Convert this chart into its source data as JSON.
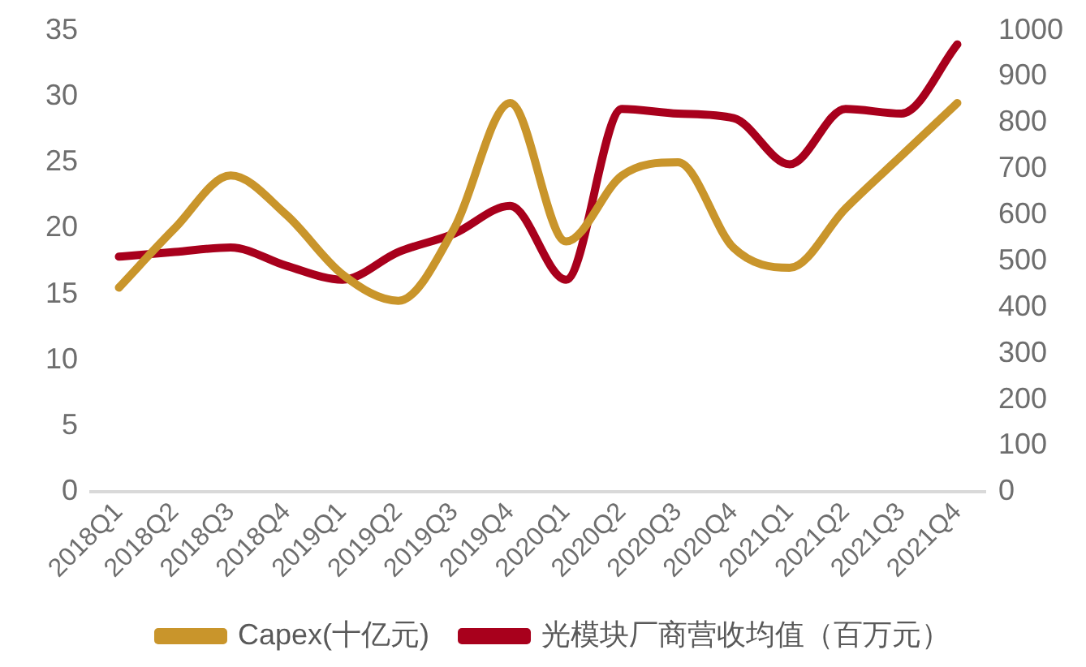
{
  "chart_data": {
    "type": "line",
    "categories": [
      "2018Q1",
      "2018Q2",
      "2018Q3",
      "2018Q4",
      "2019Q1",
      "2019Q2",
      "2019Q3",
      "2019Q4",
      "2020Q1",
      "2020Q2",
      "2020Q3",
      "2020Q4",
      "2021Q1",
      "2021Q2",
      "2021Q3",
      "2021Q4"
    ],
    "series": [
      {
        "name": "Capex(十亿元)",
        "color": "#c9952b",
        "values": [
          15.5,
          20,
          24,
          21,
          16.5,
          14.5,
          20,
          29.5,
          19,
          24,
          25,
          18.5,
          17,
          21.5,
          25.5,
          29.5
        ]
      },
      {
        "name": "光模块厂商营收均值（百万元）",
        "color": "#a8001c",
        "axis": "y2",
        "values": [
          510,
          520,
          530,
          490,
          460,
          520,
          560,
          620,
          460,
          830,
          820,
          810,
          710,
          830,
          820,
          970
        ]
      }
    ],
    "ylim": [
      0,
      35
    ],
    "yticks": [
      0,
      5,
      10,
      15,
      20,
      25,
      30,
      35
    ],
    "y2lim": [
      0,
      1000
    ],
    "y2ticks": [
      0,
      100,
      200,
      300,
      400,
      500,
      600,
      700,
      800,
      900,
      1000
    ],
    "grid": false,
    "legend": "bottom",
    "marker": "none",
    "line_style": "solid"
  }
}
